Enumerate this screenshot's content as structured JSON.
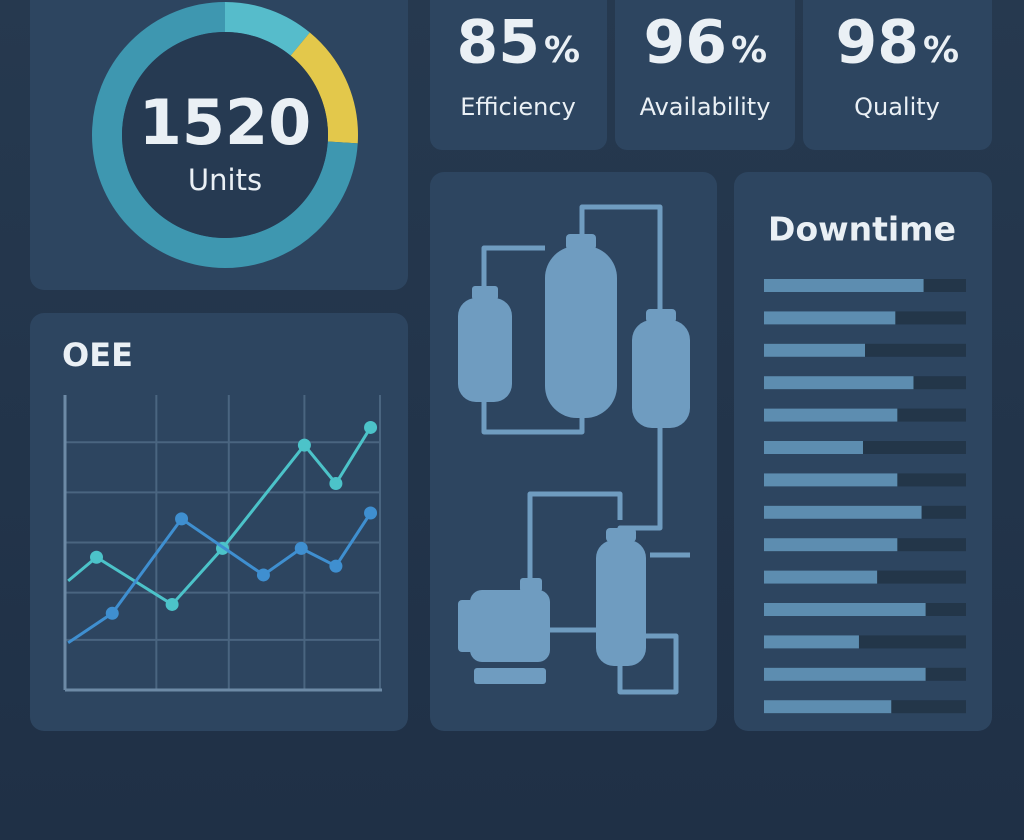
{
  "donut": {
    "value": 1520,
    "label": "Units",
    "segments": [
      {
        "value": 11,
        "color": "#56bccb"
      },
      {
        "value": 15,
        "color": "#e3c84b"
      },
      {
        "value": 74,
        "color": "#3e97b0"
      }
    ]
  },
  "kpis": [
    {
      "value": 85,
      "unit": "%",
      "label": "Efficiency"
    },
    {
      "value": 96,
      "unit": "%",
      "label": "Availability"
    },
    {
      "value": 98,
      "unit": "%",
      "label": "Quality"
    }
  ],
  "chart_data": {
    "type": "line",
    "title": "OEE",
    "xlim": [
      0,
      100
    ],
    "ylim": [
      0,
      100
    ],
    "xticks": [
      0,
      29,
      52,
      76,
      100
    ],
    "yticks": [
      0,
      17,
      33,
      50,
      67,
      84
    ],
    "grid": true,
    "series": [
      {
        "color": "#4cc3c9",
        "x": [
          1,
          10,
          34,
          50,
          76,
          86,
          97
        ],
        "values": [
          37,
          45,
          29,
          48,
          83,
          70,
          89
        ]
      },
      {
        "color": "#3f8fd0",
        "x": [
          1,
          15,
          37,
          63,
          75,
          86,
          97
        ],
        "values": [
          16,
          26,
          58,
          39,
          48,
          42,
          60
        ]
      }
    ]
  },
  "downtime": {
    "title": "Downtime",
    "xlim": [
      0,
      100
    ],
    "color": "#5d8db0",
    "values": [
      79,
      65,
      50,
      74,
      66,
      49,
      66,
      78,
      66,
      56,
      80,
      47,
      80,
      63
    ]
  }
}
